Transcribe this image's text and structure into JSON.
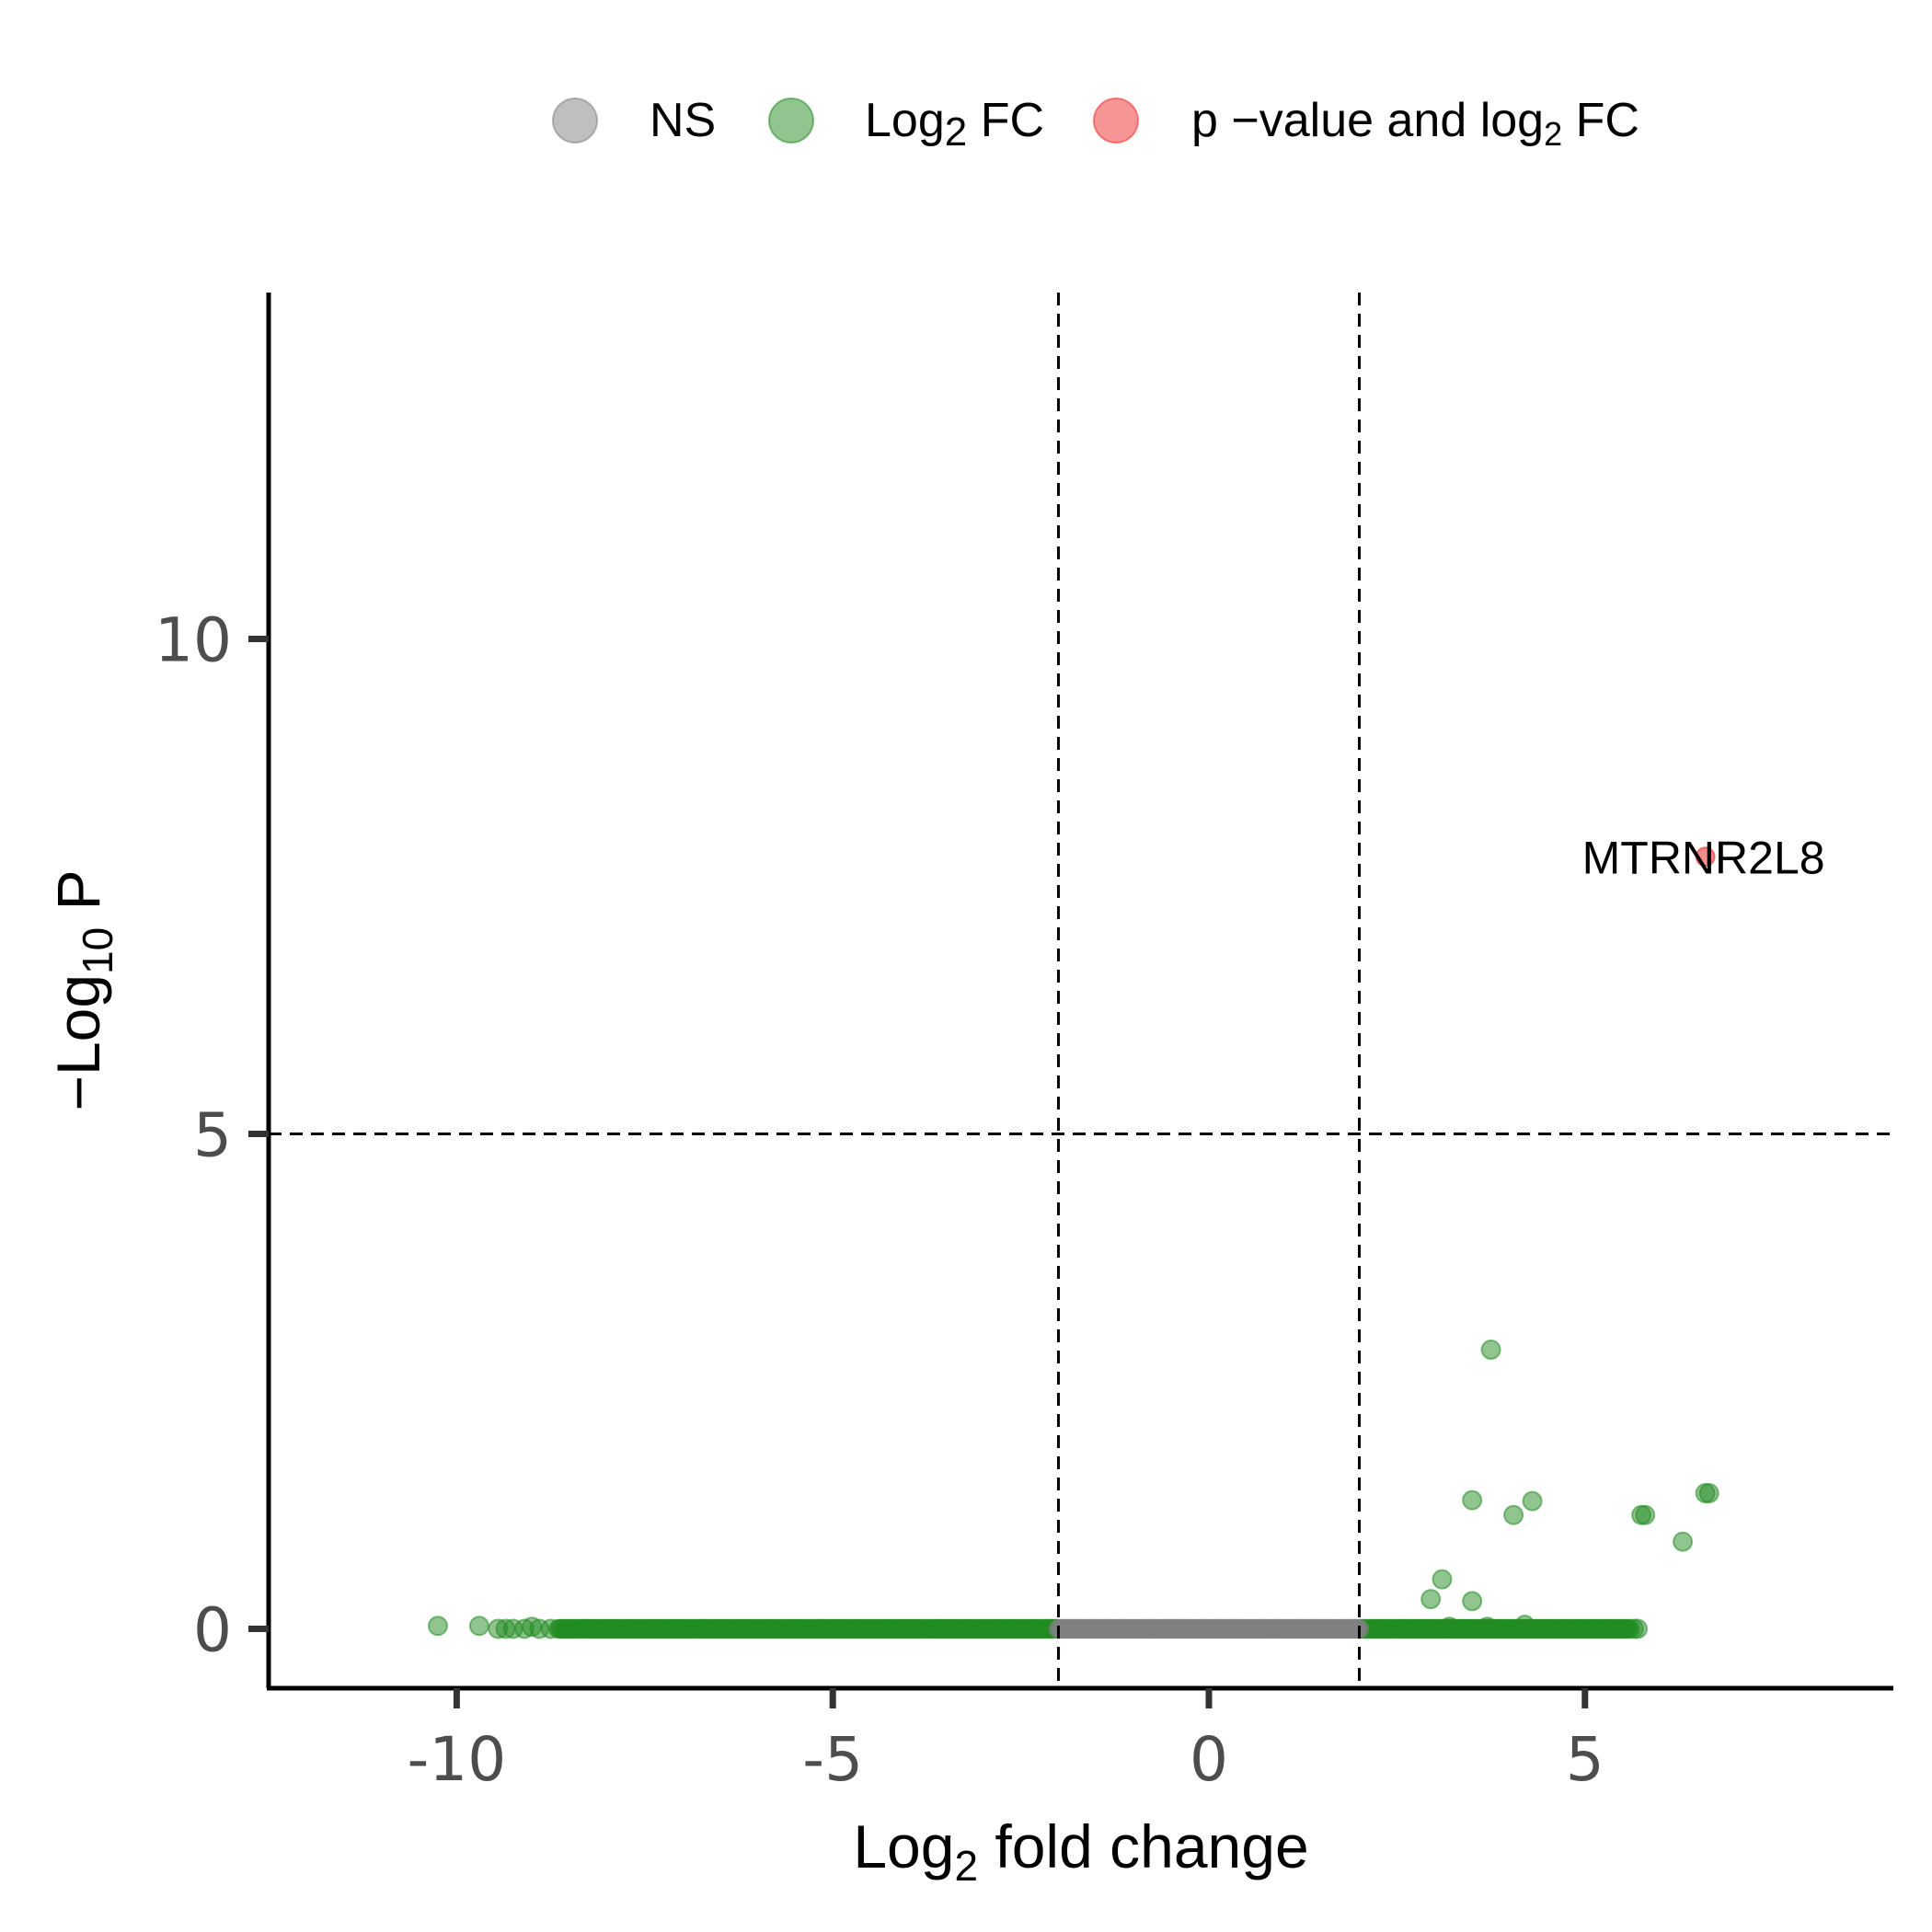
{
  "chart_data": {
    "type": "scatter",
    "subtype": "volcano",
    "title": "",
    "xlabel_main": "Log",
    "xlabel_sub": "2",
    "xlabel_rest": " fold change",
    "ylabel_main": "−Log",
    "ylabel_sub": "10",
    "ylabel_rest": " P",
    "xlim": [
      -12.5,
      9.1
    ],
    "ylim": [
      -0.6,
      13.5
    ],
    "x_ticks": [
      {
        "value": -10,
        "label": "-10"
      },
      {
        "value": -5,
        "label": "-5"
      },
      {
        "value": 0,
        "label": "0"
      },
      {
        "value": 5,
        "label": "5"
      }
    ],
    "y_ticks": [
      {
        "value": 0,
        "label": "0"
      },
      {
        "value": 5,
        "label": "5"
      },
      {
        "value": 10,
        "label": "10"
      }
    ],
    "grid": false,
    "legend_position": "top",
    "legend": [
      {
        "key": "ns",
        "main": "NS",
        "sub": "",
        "rest": "",
        "color": "#808080"
      },
      {
        "key": "fc",
        "main": "Log",
        "sub": "2",
        "rest": " FC",
        "color": "#228B22"
      },
      {
        "key": "both",
        "main": "p −value and log",
        "sub": "2",
        "rest": " FC",
        "color": "#EE2C2C"
      }
    ],
    "cutoffs": {
      "x": [
        -2,
        2
      ],
      "y": 5
    },
    "series": [
      {
        "key": "ns",
        "name": "NS",
        "color": "#808080",
        "x_range": [
          -2.0,
          2.0
        ],
        "y": 0
      },
      {
        "key": "fc",
        "name": "Log2 FC",
        "color": "#228B22",
        "dense_segments": [
          {
            "x_range": [
              -8.65,
              -2.0
            ],
            "y": 0
          },
          {
            "x_range": [
              2.0,
              5.6
            ],
            "y": 0
          }
        ],
        "points": [
          {
            "x": -10.25,
            "y": 0.03
          },
          {
            "x": -9.7,
            "y": 0.03
          },
          {
            "x": -9.45,
            "y": 0.0
          },
          {
            "x": -9.35,
            "y": 0.0
          },
          {
            "x": -9.25,
            "y": 0.0
          },
          {
            "x": -9.1,
            "y": 0.0
          },
          {
            "x": -9.0,
            "y": 0.02
          },
          {
            "x": -8.9,
            "y": 0.0
          },
          {
            "x": -8.75,
            "y": 0.0
          },
          {
            "x": 3.75,
            "y": 2.82
          },
          {
            "x": 3.5,
            "y": 1.3
          },
          {
            "x": 4.05,
            "y": 1.15
          },
          {
            "x": 4.3,
            "y": 1.29
          },
          {
            "x": 5.75,
            "y": 1.15
          },
          {
            "x": 5.8,
            "y": 1.15
          },
          {
            "x": 6.6,
            "y": 1.37
          },
          {
            "x": 6.65,
            "y": 1.37
          },
          {
            "x": 6.3,
            "y": 0.88
          },
          {
            "x": 3.1,
            "y": 0.5
          },
          {
            "x": 2.95,
            "y": 0.3
          },
          {
            "x": 3.5,
            "y": 0.28
          },
          {
            "x": 3.2,
            "y": 0.02
          },
          {
            "x": 3.7,
            "y": 0.02
          },
          {
            "x": 4.2,
            "y": 0.04
          },
          {
            "x": 5.65,
            "y": 0.0
          },
          {
            "x": 5.7,
            "y": 0.0
          }
        ]
      },
      {
        "key": "both",
        "name": "p-value and log2 FC",
        "color": "#EE2C2C",
        "points": [
          {
            "x": 6.6,
            "y": 7.8,
            "label": "MTRNR2L8"
          }
        ]
      }
    ]
  }
}
